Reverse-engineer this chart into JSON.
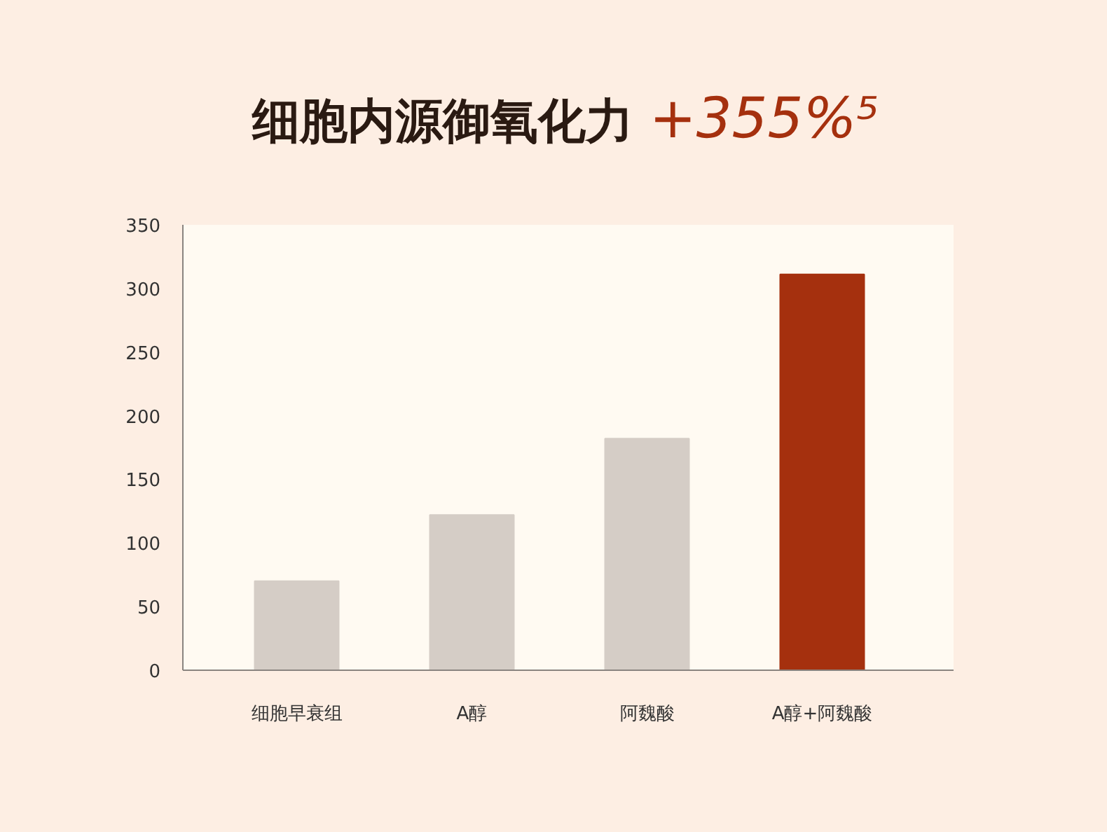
{
  "chart_data": {
    "type": "bar",
    "title": "细胞内源御氧化力",
    "annotations": [
      "+355%⁵"
    ],
    "categories": [
      "细胞早衰组",
      "A醇",
      "阿魏酸",
      "A醇+阿魏酸"
    ],
    "values": [
      70,
      122,
      182,
      311
    ],
    "colors": [
      "#d5cdc6",
      "#d5cdc6",
      "#d5cdc6",
      "#a5300e"
    ],
    "ylim": [
      0,
      350
    ],
    "yticks": [
      0,
      50,
      100,
      150,
      200,
      250,
      300,
      350
    ],
    "grid": false
  }
}
